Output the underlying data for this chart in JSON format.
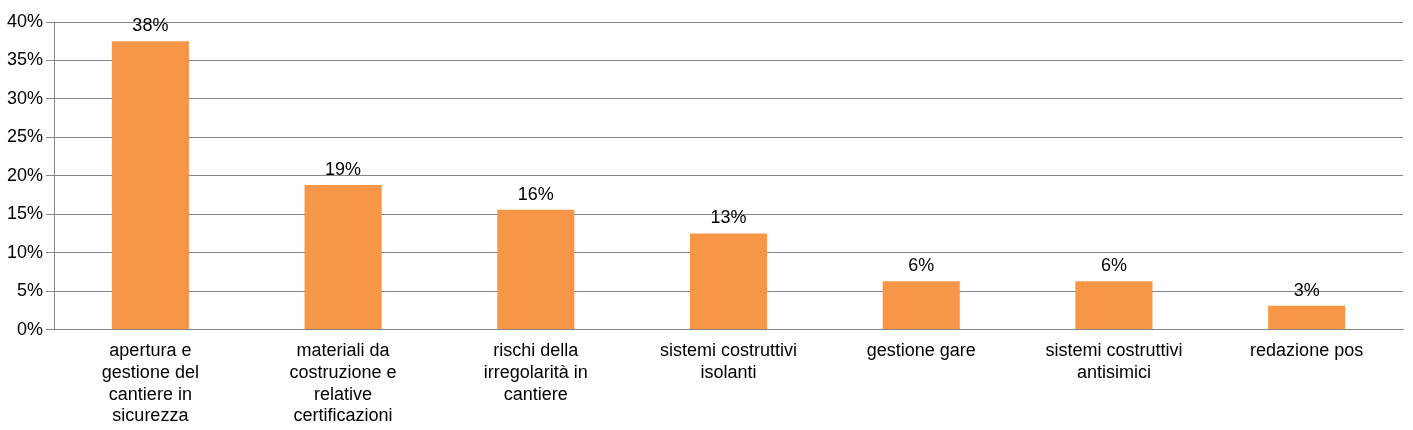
{
  "chart_data": {
    "type": "bar",
    "categories": [
      "apertura e gestione del cantiere in sicurezza",
      "materiali da costruzione e relative certificazioni",
      "rischi della irregolarità in cantiere",
      "sistemi costruttivi isolanti",
      "gestione gare",
      "sistemi costruttivi antisimici",
      "redazione pos"
    ],
    "values": [
      37.5,
      18.8,
      15.6,
      12.5,
      6.3,
      6.3,
      3.1
    ],
    "value_labels": [
      "38%",
      "19%",
      "16%",
      "13%",
      "6%",
      "6%",
      "3%"
    ],
    "color": "#f79646",
    "ylim": [
      0,
      40
    ],
    "yticks": [
      {
        "value": 0,
        "label": "0%"
      },
      {
        "value": 5,
        "label": "5%"
      },
      {
        "value": 10,
        "label": "10%"
      },
      {
        "value": 15,
        "label": "15%"
      },
      {
        "value": 20,
        "label": "20%"
      },
      {
        "value": 25,
        "label": "25%"
      },
      {
        "value": 30,
        "label": "30%"
      },
      {
        "value": 35,
        "label": "35%"
      },
      {
        "value": 40,
        "label": "40%"
      }
    ],
    "grid": "y",
    "legend": false
  }
}
